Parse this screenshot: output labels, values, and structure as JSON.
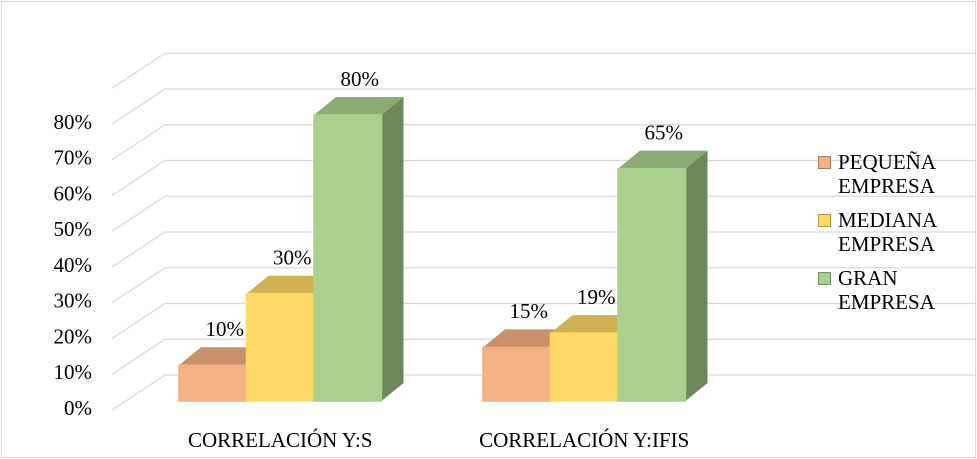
{
  "chart_data": {
    "type": "bar3d",
    "categories": [
      "CORRELACIÓN Y:S",
      "CORRELACIÓN Y:IFIS"
    ],
    "series": [
      {
        "name": "PEQUEÑA EMPRESA",
        "color": "#f4b183",
        "values": [
          10,
          15
        ],
        "value_labels": [
          "10%",
          "15%"
        ]
      },
      {
        "name": "MEDIANA EMPRESA",
        "color": "#ffd966",
        "values": [
          30,
          19
        ],
        "value_labels": [
          "30%",
          "19%"
        ]
      },
      {
        "name": "GRAN EMPRESA",
        "color": "#a9d18e",
        "values": [
          80,
          65
        ],
        "value_labels": [
          "80%",
          "65%"
        ]
      }
    ],
    "ylim": [
      0,
      90
    ],
    "yticks": [
      {
        "value": 0,
        "label": "0%"
      },
      {
        "value": 10,
        "label": "10%"
      },
      {
        "value": 20,
        "label": "20%"
      },
      {
        "value": 30,
        "label": "30%"
      },
      {
        "value": 40,
        "label": "40%"
      },
      {
        "value": 50,
        "label": "50%"
      },
      {
        "value": 60,
        "label": "60%"
      },
      {
        "value": 70,
        "label": "70%"
      },
      {
        "value": 80,
        "label": "80%"
      }
    ],
    "grid": true,
    "legend": "right"
  }
}
